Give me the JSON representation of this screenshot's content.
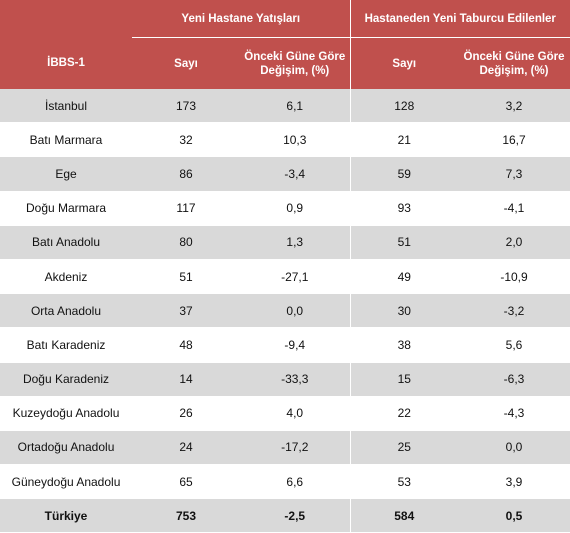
{
  "table": {
    "group_headers": [
      "Yeni Hastane Yatışları",
      "Hastaneden Yeni Taburcu Edilenler"
    ],
    "columns": [
      "İBBS-1",
      "Sayı",
      "Önceki Güne Göre Değişim, (%)",
      "Sayı",
      "Önceki Güne Göre Değişim, (%)"
    ],
    "rows": [
      [
        "İstanbul",
        "173",
        "6,1",
        "128",
        "3,2"
      ],
      [
        "Batı Marmara",
        "32",
        "10,3",
        "21",
        "16,7"
      ],
      [
        "Ege",
        "86",
        "-3,4",
        "59",
        "7,3"
      ],
      [
        "Doğu Marmara",
        "117",
        "0,9",
        "93",
        "-4,1"
      ],
      [
        "Batı Anadolu",
        "80",
        "1,3",
        "51",
        "2,0"
      ],
      [
        "Akdeniz",
        "51",
        "-27,1",
        "49",
        "-10,9"
      ],
      [
        "Orta Anadolu",
        "37",
        "0,0",
        "30",
        "-3,2"
      ],
      [
        "Batı Karadeniz",
        "48",
        "-9,4",
        "38",
        "5,6"
      ],
      [
        "Doğu Karadeniz",
        "14",
        "-33,3",
        "15",
        "-6,3"
      ],
      [
        "Kuzeydoğu Anadolu",
        "26",
        "4,0",
        "22",
        "-4,3"
      ],
      [
        "Ortadoğu Anadolu",
        "24",
        "-17,2",
        "25",
        "0,0"
      ],
      [
        "Güneydoğu Anadolu",
        "65",
        "6,6",
        "53",
        "3,9"
      ]
    ],
    "total": [
      "Türkiye",
      "753",
      "-2,5",
      "584",
      "0,5"
    ]
  }
}
